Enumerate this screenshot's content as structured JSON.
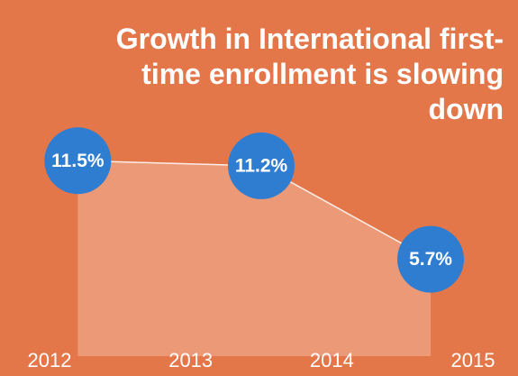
{
  "chart_data": {
    "type": "area",
    "title": "Growth in International first-time enrollment is slowing down",
    "x": [
      2012.2,
      2013.5,
      2014.7
    ],
    "values": [
      11.5,
      11.2,
      5.7
    ],
    "value_labels": [
      "11.5%",
      "11.2%",
      "5.7%"
    ],
    "xlim": [
      2011.8,
      2015.3
    ],
    "xticks": [
      2012,
      2013,
      2014,
      2015
    ],
    "ylim": [
      0,
      13
    ],
    "color": "#2f7dd0",
    "background": "#e4774a"
  }
}
